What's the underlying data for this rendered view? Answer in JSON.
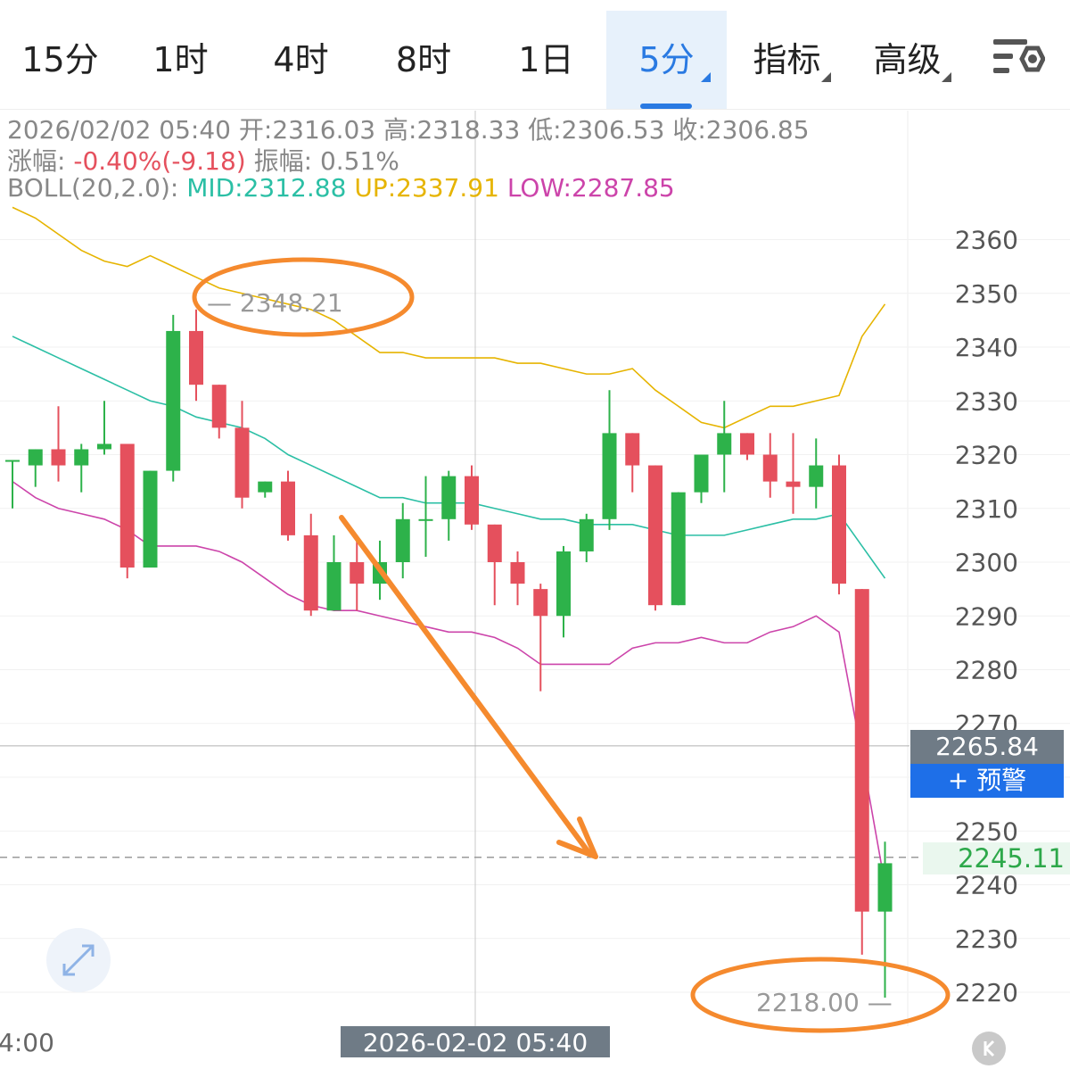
{
  "tabs": [
    {
      "label": "15分",
      "active": false,
      "dropdown": false
    },
    {
      "label": "1时",
      "active": false,
      "dropdown": false
    },
    {
      "label": "4时",
      "active": false,
      "dropdown": false
    },
    {
      "label": "8时",
      "active": false,
      "dropdown": false
    },
    {
      "label": "1日",
      "active": false,
      "dropdown": false
    },
    {
      "label": "5分",
      "active": true,
      "dropdown": true
    },
    {
      "label": "指标",
      "active": false,
      "dropdown": true
    },
    {
      "label": "高级",
      "active": false,
      "dropdown": true
    }
  ],
  "settings_icon": "chart-settings-icon",
  "info": {
    "datetime": "2026/02/02 05:40",
    "open_label": "开:",
    "open": "2316.03",
    "high_label": "高:",
    "high": "2318.33",
    "low_label": "低:",
    "low": "2306.53",
    "close_label": "收:",
    "close": "2306.85",
    "change_label": "涨幅:",
    "change": "-0.40%(-9.18)",
    "amplitude_label": "振幅:",
    "amplitude": "0.51%",
    "boll_label": "BOLL(20,2.0):",
    "boll_mid": "MID:2312.88",
    "boll_up": "UP:2337.91",
    "boll_low": "LOW:2287.85"
  },
  "crosshair_price": "2265.84",
  "alert_button": "+ 预警",
  "last_price": "2245.11",
  "cursor_time": "2026-02-02 05:40",
  "left_time": "4:00",
  "annotations": {
    "high_marker": "2348.21",
    "low_marker": "2218.00"
  },
  "colors": {
    "up": "#2db24a",
    "down": "#e5505d",
    "boll_mid": "#2bbfa5",
    "boll_up": "#e6b400",
    "boll_low": "#cc44aa",
    "annotation": "#f58a2e",
    "accent": "#2a7ae2"
  },
  "chart_data": {
    "type": "candlestick",
    "title": "",
    "y_ticks": [
      2220,
      2230,
      2240,
      2250,
      2260,
      2270,
      2280,
      2290,
      2300,
      2310,
      2320,
      2330,
      2340,
      2350,
      2360
    ],
    "y_tick_labels_shown": [
      "2220",
      "2230",
      "2240",
      "2250",
      "2270",
      "2280",
      "2290",
      "2300",
      "2310",
      "2320",
      "2330",
      "2340",
      "2350",
      "2360"
    ],
    "ylim": [
      2214,
      2368
    ],
    "candles": [
      {
        "o": 2319,
        "h": 2319,
        "l": 2310,
        "c": 2319
      },
      {
        "o": 2318,
        "h": 2321,
        "l": 2314,
        "c": 2321
      },
      {
        "o": 2321,
        "h": 2329,
        "l": 2315,
        "c": 2318
      },
      {
        "o": 2318,
        "h": 2322,
        "l": 2313,
        "c": 2321
      },
      {
        "o": 2321,
        "h": 2330,
        "l": 2320,
        "c": 2322
      },
      {
        "o": 2322,
        "h": 2322,
        "l": 2297,
        "c": 2299
      },
      {
        "o": 2299,
        "h": 2317,
        "l": 2299,
        "c": 2317
      },
      {
        "o": 2317,
        "h": 2346,
        "l": 2315,
        "c": 2343
      },
      {
        "o": 2343,
        "h": 2347,
        "l": 2330,
        "c": 2333
      },
      {
        "o": 2333,
        "h": 2333,
        "l": 2323,
        "c": 2325
      },
      {
        "o": 2325,
        "h": 2330,
        "l": 2310,
        "c": 2312
      },
      {
        "o": 2313,
        "h": 2315,
        "l": 2312,
        "c": 2315
      },
      {
        "o": 2315,
        "h": 2317,
        "l": 2304,
        "c": 2305
      },
      {
        "o": 2305,
        "h": 2309,
        "l": 2290,
        "c": 2291
      },
      {
        "o": 2291,
        "h": 2305,
        "l": 2291,
        "c": 2300
      },
      {
        "o": 2300,
        "h": 2305,
        "l": 2291,
        "c": 2296
      },
      {
        "o": 2296,
        "h": 2304,
        "l": 2293,
        "c": 2300
      },
      {
        "o": 2300,
        "h": 2311,
        "l": 2297,
        "c": 2308
      },
      {
        "o": 2308,
        "h": 2316,
        "l": 2301,
        "c": 2308
      },
      {
        "o": 2308,
        "h": 2317,
        "l": 2304,
        "c": 2316
      },
      {
        "o": 2316,
        "h": 2318,
        "l": 2306,
        "c": 2307
      },
      {
        "o": 2307,
        "h": 2307,
        "l": 2292,
        "c": 2300
      },
      {
        "o": 2300,
        "h": 2302,
        "l": 2292,
        "c": 2296
      },
      {
        "o": 2295,
        "h": 2296,
        "l": 2276,
        "c": 2290
      },
      {
        "o": 2290,
        "h": 2303,
        "l": 2286,
        "c": 2302
      },
      {
        "o": 2302,
        "h": 2309,
        "l": 2300,
        "c": 2308
      },
      {
        "o": 2308,
        "h": 2332,
        "l": 2306,
        "c": 2324
      },
      {
        "o": 2324,
        "h": 2324,
        "l": 2313,
        "c": 2318
      },
      {
        "o": 2318,
        "h": 2318,
        "l": 2291,
        "c": 2292
      },
      {
        "o": 2292,
        "h": 2313,
        "l": 2292,
        "c": 2313
      },
      {
        "o": 2313,
        "h": 2320,
        "l": 2311,
        "c": 2320
      },
      {
        "o": 2320,
        "h": 2330,
        "l": 2313,
        "c": 2324
      },
      {
        "o": 2324,
        "h": 2324,
        "l": 2319,
        "c": 2320
      },
      {
        "o": 2320,
        "h": 2324,
        "l": 2312,
        "c": 2315
      },
      {
        "o": 2315,
        "h": 2324,
        "l": 2309,
        "c": 2314
      },
      {
        "o": 2314,
        "h": 2323,
        "l": 2310,
        "c": 2318
      },
      {
        "o": 2318,
        "h": 2320,
        "l": 2294,
        "c": 2296
      },
      {
        "o": 2295,
        "h": 2295,
        "l": 2227,
        "c": 2235
      },
      {
        "o": 2235,
        "h": 2248,
        "l": 2219,
        "c": 2244
      }
    ],
    "boll_up": [
      2366,
      2364,
      2361,
      2358,
      2356,
      2355,
      2357,
      2355,
      2353,
      2351,
      2350,
      2349,
      2348,
      2347,
      2345,
      2342,
      2339,
      2339,
      2338,
      2338,
      2338,
      2338,
      2337,
      2337,
      2336,
      2335,
      2335,
      2336,
      2332,
      2329,
      2326,
      2325,
      2327,
      2329,
      2329,
      2330,
      2331,
      2342,
      2348
    ],
    "boll_mid": [
      2342,
      2340,
      2338,
      2336,
      2334,
      2332,
      2330,
      2329,
      2327,
      2326,
      2325,
      2323,
      2320,
      2318,
      2316,
      2314,
      2312,
      2312,
      2311,
      2311,
      2311,
      2310,
      2309,
      2308,
      2308,
      2307,
      2307,
      2307,
      2306,
      2305,
      2305,
      2305,
      2306,
      2307,
      2308,
      2308,
      2309,
      2303,
      2297
    ],
    "boll_low": [
      2315,
      2312,
      2310,
      2309,
      2308,
      2306,
      2303,
      2303,
      2303,
      2302,
      2300,
      2297,
      2294,
      2292,
      2291,
      2291,
      2290,
      2289,
      2288,
      2287,
      2287,
      2286,
      2284,
      2281,
      2281,
      2281,
      2281,
      2284,
      2285,
      2285,
      2286,
      2285,
      2285,
      2287,
      2288,
      2290,
      2287,
      2264,
      2240
    ],
    "crosshair_price": 2265.84,
    "last_price": 2245.11,
    "annotations": [
      {
        "type": "ellipse",
        "label": "2348.21",
        "value": 2348.21
      },
      {
        "type": "arrow",
        "from_candle": 15,
        "to_candle": 26,
        "from_value": 2305,
        "to_value": 2245
      },
      {
        "type": "ellipse",
        "label": "2218.00",
        "value": 2218.0
      }
    ]
  }
}
